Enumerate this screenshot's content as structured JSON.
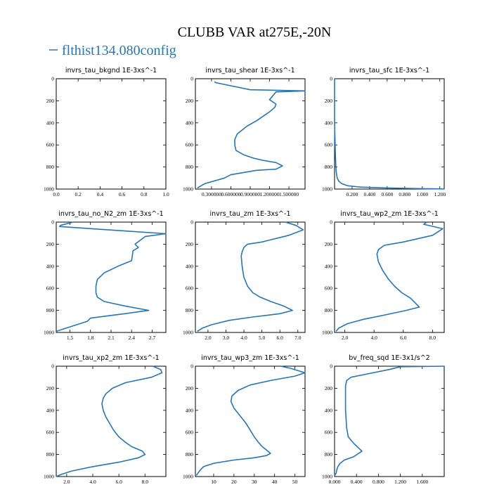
{
  "figure": {
    "title": "CLUBB VAR at275E,-20N",
    "legend_label": "flthist134.080config",
    "line_color": "#2a75b0"
  },
  "chart_data": [
    {
      "type": "line",
      "title": "invrs_tau_bkgnd",
      "units": "1E-3xs^-1",
      "xlim": [
        0,
        1
      ],
      "ylim": [
        1000,
        0
      ],
      "xticks": [
        0,
        0.2,
        0.4,
        0.6,
        0.8,
        1.0
      ],
      "xticklabels": [
        "0.0",
        "0.2",
        "0.4",
        "0.6",
        "0.8",
        "1.0"
      ],
      "yticks": [
        0,
        200,
        400,
        600,
        800,
        1000
      ],
      "series": [
        {
          "x": [],
          "y": []
        }
      ]
    },
    {
      "type": "line",
      "title": "invrs_tau_shear",
      "units": "1E-3xs^-1",
      "xlim": [
        0.05,
        1.75
      ],
      "ylim": [
        1000,
        0
      ],
      "xticks": [
        0.3,
        0.6,
        0.9,
        1.2,
        1.5
      ],
      "xticklabels": [
        "0.300000",
        "0.600000",
        "0.900000",
        "1.200000",
        "1.500000"
      ],
      "yticks": [
        0,
        200,
        400,
        600,
        800,
        1000
      ],
      "series": [
        {
          "x": [
            0.35,
            0.36,
            0.9,
            1.75,
            1.3,
            1.2,
            1.3,
            1.28,
            1.2,
            1.0,
            0.85,
            0.7,
            0.66,
            0.66,
            0.68,
            0.8,
            0.95,
            1.1,
            1.3,
            1.4,
            1.3,
            1.0,
            0.6,
            0.5,
            0.2,
            0.08
          ],
          "y": [
            25,
            35,
            100,
            110,
            120,
            190,
            230,
            260,
            300,
            380,
            430,
            500,
            550,
            600,
            650,
            690,
            720,
            740,
            760,
            790,
            820,
            830,
            870,
            900,
            950,
            990
          ]
        }
      ]
    },
    {
      "type": "line",
      "title": "invrs_tau_sfc",
      "units": "1E-3xs^-1",
      "xlim": [
        0,
        1.25
      ],
      "ylim": [
        1000,
        0
      ],
      "xticks": [
        0.2,
        0.4,
        0.6,
        0.8,
        1.0,
        1.2
      ],
      "xticklabels": [
        "0.200",
        "0.400",
        "0.600",
        "0.800",
        "1.000",
        "1.200"
      ],
      "yticks": [
        0,
        200,
        400,
        600,
        800,
        1000
      ],
      "series": [
        {
          "x": [
            0.0,
            0.0,
            0.01,
            0.015,
            0.02,
            0.03,
            0.05,
            0.08,
            0.15,
            0.3,
            0.6,
            1.0,
            1.25
          ],
          "y": [
            0,
            400,
            700,
            800,
            850,
            900,
            930,
            950,
            970,
            982,
            990,
            996,
            999
          ]
        }
      ]
    },
    {
      "type": "line",
      "title": "invrs_tau_no_N2_zm",
      "units": "1E-3xs^-1",
      "xlim": [
        1.3,
        2.9
      ],
      "ylim": [
        1000,
        0
      ],
      "xticks": [
        1.5,
        1.8,
        2.1,
        2.4,
        2.7
      ],
      "xticklabels": [
        "1.5",
        "1.8",
        "2.1",
        "2.4",
        "2.7"
      ],
      "yticks": [
        0,
        200,
        400,
        600,
        800,
        1000
      ],
      "series": [
        {
          "x": [
            1.55,
            1.36,
            1.35,
            2.3,
            2.9,
            2.6,
            2.45,
            2.5,
            2.42,
            2.4,
            2.2,
            2.0,
            1.9,
            1.88,
            1.88,
            1.9,
            2.0,
            2.3,
            2.65,
            2.3,
            1.8,
            1.75,
            1.3
          ],
          "y": [
            0,
            30,
            40,
            80,
            105,
            130,
            200,
            230,
            260,
            350,
            400,
            460,
            520,
            580,
            640,
            680,
            720,
            760,
            800,
            830,
            870,
            900,
            990
          ]
        }
      ]
    },
    {
      "type": "line",
      "title": "invrs_tau_zm",
      "units": "1E-3xs^-1",
      "xlim": [
        1.3,
        7.4
      ],
      "ylim": [
        1000,
        0
      ],
      "xticks": [
        2,
        3,
        4,
        5,
        6,
        7
      ],
      "xticklabels": [
        "2.0",
        "3.0",
        "4.0",
        "5.0",
        "6.0",
        "7.0"
      ],
      "yticks": [
        0,
        200,
        400,
        600,
        800,
        1000
      ],
      "series": [
        {
          "x": [
            6.3,
            6.9,
            7.3,
            6.5,
            5.0,
            4.2,
            4.0,
            3.9,
            3.85,
            3.9,
            4.0,
            4.2,
            4.5,
            4.9,
            5.5,
            6.2,
            6.7,
            6.0,
            4.5,
            3.2,
            2.2,
            1.7,
            1.4
          ],
          "y": [
            0,
            30,
            70,
            120,
            180,
            200,
            230,
            270,
            310,
            400,
            500,
            580,
            640,
            680,
            720,
            760,
            800,
            830,
            860,
            890,
            930,
            960,
            990
          ]
        }
      ]
    },
    {
      "type": "line",
      "title": "invrs_tau_wp2_zm",
      "units": "1E-3xs^-1",
      "xlim": [
        1.3,
        8.8
      ],
      "ylim": [
        1000,
        0
      ],
      "xticks": [
        2,
        4,
        6,
        8
      ],
      "xticklabels": [
        "2.0",
        "4.0",
        "6.0",
        "8.0"
      ],
      "yticks": [
        0,
        200,
        400,
        600,
        800,
        1000
      ],
      "series": [
        {
          "x": [
            7.6,
            7.4,
            8.7,
            8.0,
            6.0,
            4.7,
            4.3,
            4.2,
            4.3,
            4.6,
            5.0,
            5.4,
            5.9,
            6.5,
            7.1,
            6.2,
            4.8,
            3.3,
            2.2,
            1.6,
            1.4
          ],
          "y": [
            0,
            20,
            60,
            120,
            180,
            210,
            250,
            290,
            360,
            440,
            520,
            580,
            640,
            690,
            770,
            800,
            840,
            880,
            920,
            960,
            990
          ]
        }
      ]
    },
    {
      "type": "line",
      "title": "invrs_tau_xp2_zm",
      "units": "1E-3xs^-1",
      "xlim": [
        1.2,
        9.6
      ],
      "ylim": [
        1000,
        0
      ],
      "xticks": [
        2,
        4,
        6,
        8
      ],
      "xticklabels": [
        "2.0",
        "4.0",
        "6.0",
        "8.0"
      ],
      "yticks": [
        0,
        200,
        400,
        600,
        800,
        1000
      ],
      "series": [
        {
          "x": [
            8.6,
            9.2,
            9.3,
            8.5,
            6.5,
            5.5,
            5.0,
            4.8,
            4.7,
            4.8,
            5.0,
            5.3,
            5.6,
            6.0,
            6.5,
            7.0,
            7.8,
            8.0,
            7.5,
            6.0,
            4.0,
            2.4,
            1.6,
            1.2
          ],
          "y": [
            0,
            30,
            60,
            100,
            150,
            200,
            250,
            290,
            340,
            400,
            460,
            520,
            580,
            640,
            690,
            730,
            770,
            800,
            830,
            870,
            910,
            950,
            980,
            1000
          ]
        }
      ]
    },
    {
      "type": "line",
      "title": "invrs_tau_wp3_zm",
      "units": "1E-3xs^-1",
      "xlim": [
        1,
        55
      ],
      "ylim": [
        1000,
        0
      ],
      "xticks": [
        10,
        20,
        30,
        40,
        50
      ],
      "xticklabels": [
        "10",
        "20",
        "30",
        "40",
        "50"
      ],
      "yticks": [
        0,
        200,
        400,
        600,
        800,
        1000
      ],
      "series": [
        {
          "x": [
            43,
            48,
            55,
            50,
            38,
            28,
            22,
            19,
            18.5,
            20,
            23,
            26,
            28,
            30,
            32,
            34,
            36,
            38,
            36,
            30,
            20,
            10,
            5,
            3,
            1.5
          ],
          "y": [
            0,
            20,
            60,
            90,
            130,
            170,
            220,
            270,
            320,
            380,
            450,
            520,
            580,
            640,
            690,
            730,
            760,
            790,
            810,
            830,
            850,
            880,
            910,
            950,
            990
          ]
        }
      ]
    },
    {
      "type": "line",
      "title": "bv_freq_sqd",
      "units": "1E-3x1/s^2",
      "xlim": [
        0,
        2
      ],
      "ylim": [
        1000,
        0
      ],
      "xticks": [
        0,
        0.4,
        0.8,
        1.2,
        1.6
      ],
      "xticklabels": [
        "0.000",
        "0.400",
        "0.800",
        "1.200",
        "1.600"
      ],
      "yticks": [
        0,
        200,
        400,
        600,
        800,
        1000
      ],
      "series": [
        {
          "x": [
            2.0,
            1.2,
            1.0,
            0.6,
            0.3,
            0.22,
            0.2,
            0.2,
            0.2,
            0.2,
            0.21,
            0.22,
            0.25,
            0.35,
            0.5,
            0.35,
            0.18,
            0.1,
            0.06,
            0.04,
            0.03,
            0.0
          ],
          "y": [
            0,
            5,
            30,
            70,
            100,
            130,
            180,
            250,
            320,
            400,
            480,
            560,
            640,
            700,
            770,
            820,
            850,
            880,
            910,
            940,
            970,
            990
          ]
        }
      ]
    }
  ]
}
